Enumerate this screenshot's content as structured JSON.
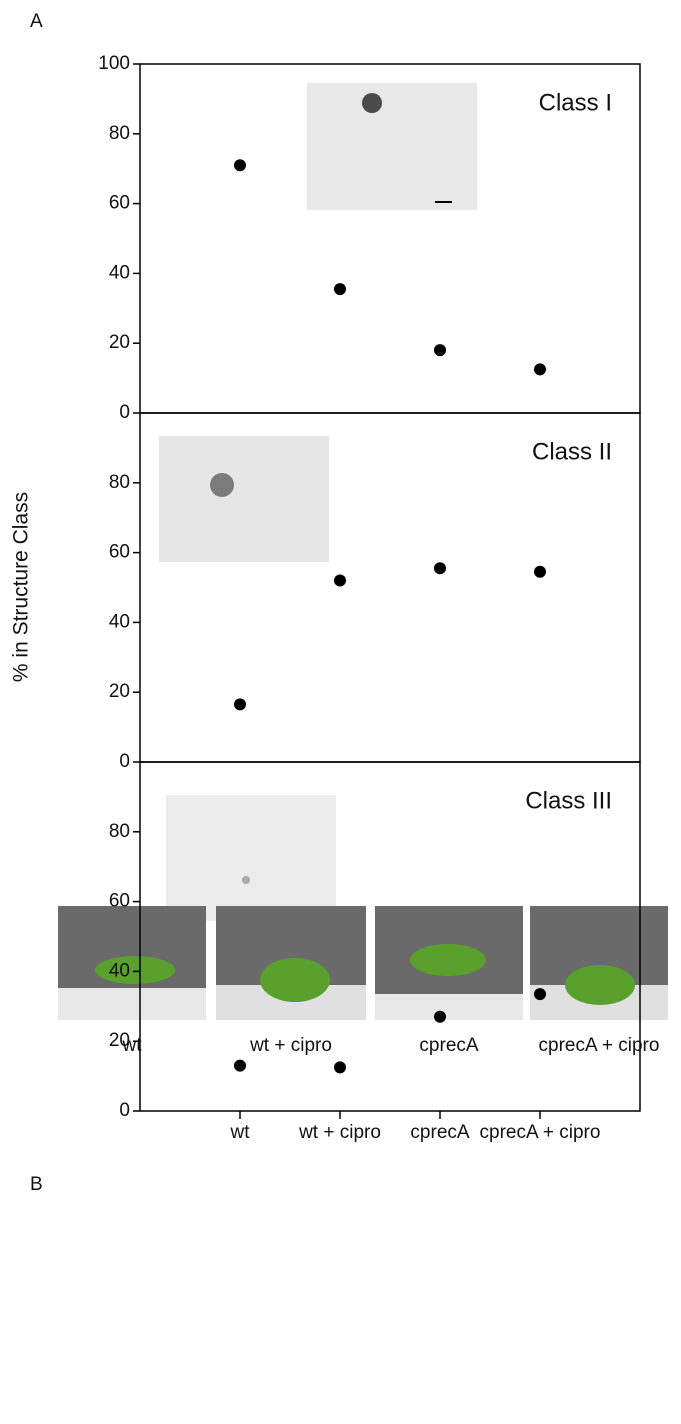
{
  "panel_labels": [
    "A",
    "B"
  ],
  "ylabel": "% in Structure Class",
  "categories": [
    "wt",
    "wt + cipro",
    "cprecA",
    "cprecA + cipro"
  ],
  "chart_data": [
    {
      "type": "dot",
      "title": "Class I",
      "values": [
        71,
        35.5,
        18,
        12.5
      ],
      "color": "#000000",
      "ylim": [
        0,
        100
      ],
      "yticks": [
        0,
        20,
        40,
        60,
        80,
        100
      ]
    },
    {
      "type": "dot",
      "title": "Class II",
      "values": [
        16.5,
        52,
        55.5,
        54.5
      ],
      "color": "#000000",
      "ylim": [
        0,
        100
      ],
      "yticks": [
        0,
        20,
        40,
        60,
        80
      ]
    },
    {
      "type": "dot",
      "title": "Class III",
      "values": [
        13,
        12.5,
        27,
        33.5
      ],
      "color": "#000000",
      "ylim": [
        0,
        100
      ],
      "yticks": [
        0,
        20,
        40,
        60,
        80
      ]
    }
  ],
  "photo_labels": [
    "wt",
    "wt + cipro",
    "cprecA",
    "cprecA + cipro"
  ]
}
